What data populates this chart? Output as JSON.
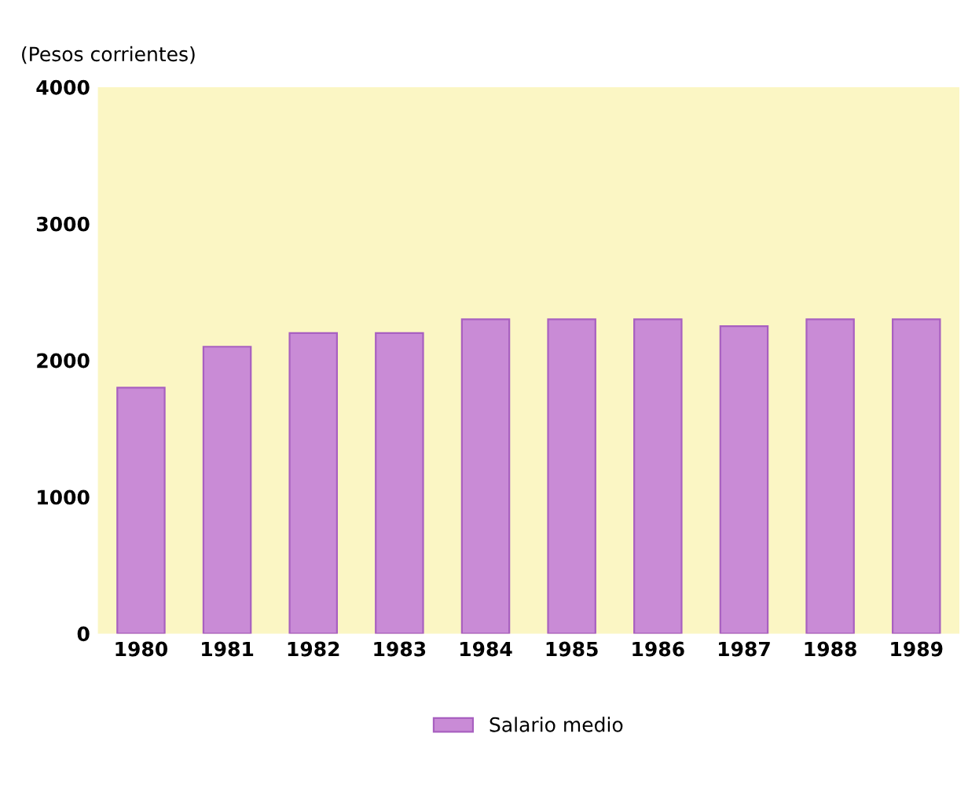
{
  "chart_data": {
    "type": "bar",
    "ylabel": "(Pesos corrientes)",
    "categories": [
      "1980",
      "1981",
      "1982",
      "1983",
      "1984",
      "1985",
      "1986",
      "1987",
      "1988",
      "1989"
    ],
    "series": [
      {
        "name": "Salario medio",
        "color": "#c98bd6",
        "values": [
          1800,
          2100,
          2200,
          2200,
          2300,
          2300,
          2300,
          2250,
          2300,
          2300
        ]
      }
    ],
    "ylim": [
      0,
      4000
    ],
    "yticks": [
      0,
      1000,
      2000,
      3000,
      4000
    ],
    "grid": false,
    "legend": "bottom"
  }
}
